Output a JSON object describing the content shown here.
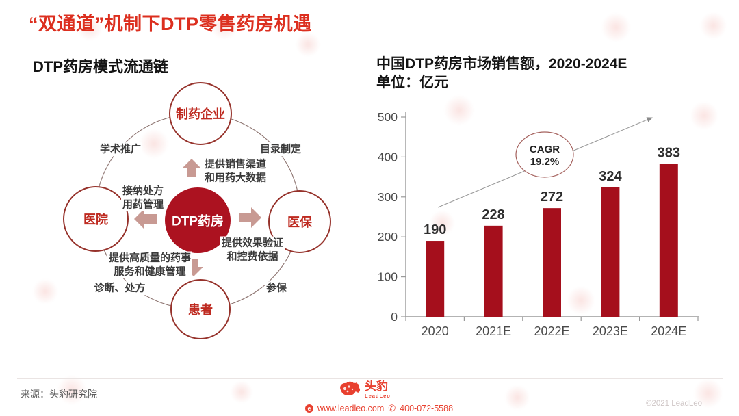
{
  "page": {
    "title": "“双通道”机制下DTP零售药房机遇"
  },
  "diagram": {
    "title": "DTP药房模式流通链",
    "center_node": "DTP药房",
    "nodes": {
      "top": "制药企业",
      "left": "医院",
      "right": "医保",
      "bottom": "患者"
    },
    "edge_labels": {
      "top_left": "学术推广",
      "top_right": "目录制定",
      "bottom_left": "诊断、处方",
      "bottom_right": "参保"
    },
    "flows": {
      "to_top_line1": "提供销售渠道",
      "to_top_line2": "和用药大数据",
      "from_left_line1": "接纳处方",
      "from_left_line2": "用药管理",
      "to_right_line1": "提供效果验证",
      "to_right_line2": "和控费依据",
      "to_bottom_line1": "提供高质量的药事",
      "to_bottom_line2": "服务和健康管理"
    }
  },
  "chart": {
    "title_line1": "中国DTP药房市场销售额，2020-2024E",
    "title_line2": "单位：亿元"
  },
  "chart_data": {
    "type": "bar",
    "title": "中国DTP药房市场销售额，2020-2024E",
    "unit_label": "单位：亿元",
    "categories": [
      "2020",
      "2021E",
      "2022E",
      "2023E",
      "2024E"
    ],
    "values": [
      190,
      228,
      272,
      324,
      383
    ],
    "ylim": [
      0,
      500
    ],
    "ytick_step": 100,
    "grid": false,
    "legend": "none",
    "bar_color": "#A50F1C",
    "annotation": {
      "line1": "CAGR",
      "line2": "19.2%"
    }
  },
  "footer": {
    "source": "来源：头豹研究院",
    "logo_cn": "头豹",
    "logo_en": "LeadLeo",
    "website": "www.leadleo.com",
    "phone": "400-072-5588",
    "copyright": "©2021 LeadLeo"
  },
  "colors": {
    "title_red": "#DC2F1F",
    "bar_red": "#A50F1C",
    "center_circle_red": "#AC1220",
    "node_border_red": "#96322B",
    "arrow_rose": "#C89A93",
    "brand_red": "#E8402F"
  },
  "icons": {
    "globe": "e",
    "phone": "✆"
  }
}
